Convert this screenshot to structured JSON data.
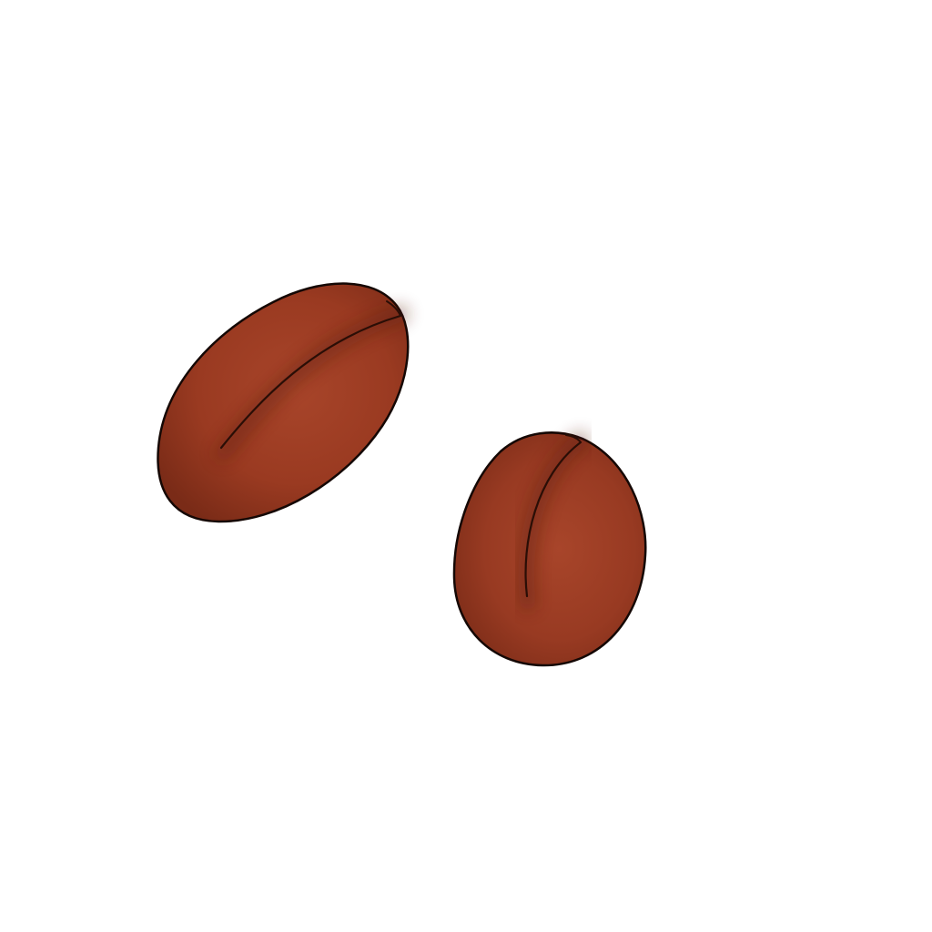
{
  "scene": {
    "background": "#ffffff",
    "colors": {
      "bean_base": "#9a3a21",
      "bean_light": "#a8452a",
      "bean_shadow": "#6a2514",
      "crease": "#2a0e06",
      "outline": "#150805"
    },
    "objects": [
      {
        "name": "coffee-bean",
        "variant": "elongated, tilted"
      },
      {
        "name": "coffee-bean",
        "variant": "rounder, upright"
      }
    ]
  }
}
